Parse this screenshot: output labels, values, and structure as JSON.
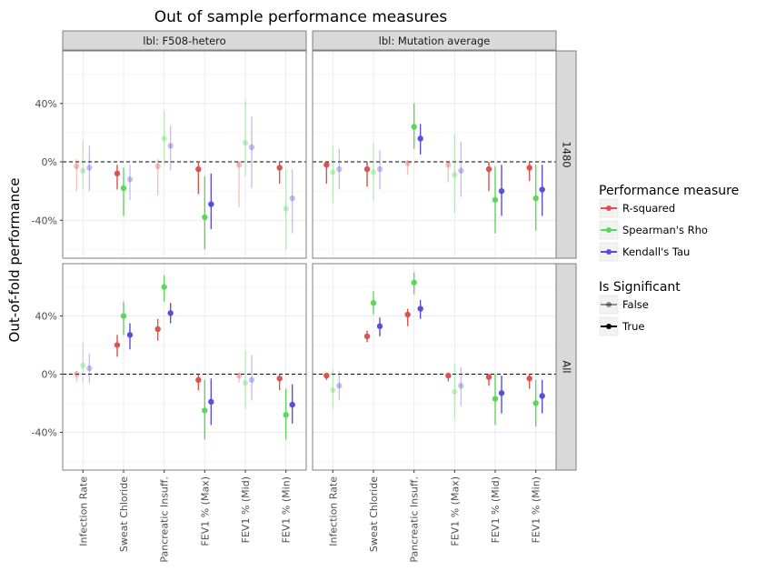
{
  "chart_data": {
    "type": "errorbar",
    "title": "Out of sample performance measures",
    "ylabel": "Out-of-fold performance",
    "xlabel": "",
    "categories": [
      "Infection Rate",
      "Sweat Chloride",
      "Pancreatic Insuff.",
      "FEV1 % (Max)",
      "FEV1 % (Mid)",
      "FEV1 % (Min)"
    ],
    "ylim": [
      -0.66,
      0.76
    ],
    "yticks": [
      {
        "value": -0.4,
        "label": "-40%"
      },
      {
        "value": 0,
        "label": "0%"
      },
      {
        "value": 0.4,
        "label": "40%"
      }
    ],
    "reference_line": 0,
    "col_facets": [
      "lbl: F508-hetero",
      "lbl: Mutation average"
    ],
    "row_facets": [
      "1480",
      "All"
    ],
    "series": [
      {
        "name": "R-squared",
        "color": "#d9534f"
      },
      {
        "name": "Spearman's Rho",
        "color": "#5cd65c"
      },
      {
        "name": "Kendall's Tau",
        "color": "#5a4fd9"
      }
    ],
    "significance_legend": {
      "title": "Is Significant",
      "levels": [
        "False",
        "True"
      ]
    },
    "legend_title": "Performance measure",
    "panels": [
      {
        "row": "1480",
        "col": "lbl: F508-hetero",
        "points": [
          [
            [
              -0.03,
              -0.2,
              0.02,
              false
            ],
            [
              -0.06,
              -0.18,
              0.15,
              false
            ],
            [
              -0.04,
              -0.2,
              0.11,
              false
            ]
          ],
          [
            [
              -0.08,
              -0.19,
              -0.02,
              true
            ],
            [
              -0.18,
              -0.37,
              -0.04,
              true
            ],
            [
              -0.12,
              -0.26,
              -0.02,
              false
            ]
          ],
          [
            [
              -0.03,
              -0.23,
              0.02,
              false
            ],
            [
              0.16,
              -0.02,
              0.35,
              false
            ],
            [
              0.11,
              -0.06,
              0.25,
              false
            ]
          ],
          [
            [
              -0.05,
              -0.22,
              0.0,
              true
            ],
            [
              -0.38,
              -0.6,
              -0.1,
              true
            ],
            [
              -0.29,
              -0.46,
              -0.08,
              true
            ]
          ],
          [
            [
              -0.02,
              -0.31,
              0.0,
              false
            ],
            [
              0.13,
              -0.1,
              0.42,
              false
            ],
            [
              0.1,
              -0.18,
              0.31,
              false
            ]
          ],
          [
            [
              -0.04,
              -0.15,
              0.0,
              true
            ],
            [
              -0.32,
              -0.6,
              -0.05,
              false
            ],
            [
              -0.25,
              -0.49,
              -0.05,
              false
            ]
          ]
        ]
      },
      {
        "row": "1480",
        "col": "lbl: Mutation average",
        "points": [
          [
            [
              -0.02,
              -0.15,
              0.0,
              true
            ],
            [
              -0.07,
              -0.28,
              0.11,
              false
            ],
            [
              -0.05,
              -0.19,
              0.09,
              false
            ]
          ],
          [
            [
              -0.05,
              -0.17,
              0.0,
              true
            ],
            [
              -0.07,
              -0.26,
              0.13,
              false
            ],
            [
              -0.05,
              -0.19,
              0.08,
              false
            ]
          ],
          [
            [
              -0.01,
              -0.09,
              0.01,
              false
            ],
            [
              0.24,
              0.09,
              0.4,
              true
            ],
            [
              0.16,
              0.05,
              0.26,
              true
            ]
          ],
          [
            [
              -0.02,
              -0.14,
              0.0,
              false
            ],
            [
              -0.09,
              -0.35,
              0.19,
              false
            ],
            [
              -0.06,
              -0.24,
              0.14,
              false
            ]
          ],
          [
            [
              -0.05,
              -0.2,
              0.0,
              true
            ],
            [
              -0.26,
              -0.49,
              -0.03,
              true
            ],
            [
              -0.2,
              -0.37,
              -0.02,
              true
            ]
          ],
          [
            [
              -0.04,
              -0.13,
              0.0,
              true
            ],
            [
              -0.25,
              -0.47,
              -0.02,
              true
            ],
            [
              -0.19,
              -0.37,
              -0.02,
              true
            ]
          ]
        ]
      },
      {
        "row": "All",
        "col": "lbl: F508-hetero",
        "points": [
          [
            [
              0.0,
              -0.05,
              0.02,
              false
            ],
            [
              0.06,
              -0.06,
              0.22,
              false
            ],
            [
              0.04,
              -0.06,
              0.14,
              false
            ]
          ],
          [
            [
              0.2,
              0.12,
              0.27,
              true
            ],
            [
              0.4,
              0.27,
              0.5,
              true
            ],
            [
              0.27,
              0.17,
              0.35,
              true
            ]
          ],
          [
            [
              0.31,
              0.23,
              0.38,
              true
            ],
            [
              0.6,
              0.5,
              0.68,
              true
            ],
            [
              0.42,
              0.35,
              0.49,
              true
            ]
          ],
          [
            [
              -0.04,
              -0.11,
              0.0,
              true
            ],
            [
              -0.25,
              -0.45,
              -0.04,
              true
            ],
            [
              -0.19,
              -0.35,
              -0.03,
              true
            ]
          ],
          [
            [
              -0.01,
              -0.06,
              0.01,
              false
            ],
            [
              -0.06,
              -0.24,
              0.16,
              false
            ],
            [
              -0.04,
              -0.18,
              0.13,
              false
            ]
          ],
          [
            [
              -0.03,
              -0.11,
              0.0,
              true
            ],
            [
              -0.28,
              -0.45,
              -0.1,
              true
            ],
            [
              -0.21,
              -0.34,
              -0.07,
              true
            ]
          ]
        ]
      },
      {
        "row": "All",
        "col": "lbl: Mutation average",
        "points": [
          [
            [
              -0.01,
              -0.04,
              0.01,
              true
            ],
            [
              -0.11,
              -0.24,
              0.03,
              false
            ],
            [
              -0.08,
              -0.18,
              0.02,
              false
            ]
          ],
          [
            [
              0.26,
              0.22,
              0.3,
              true
            ],
            [
              0.49,
              0.41,
              0.57,
              true
            ],
            [
              0.33,
              0.26,
              0.39,
              true
            ]
          ],
          [
            [
              0.41,
              0.33,
              0.45,
              true
            ],
            [
              0.63,
              0.55,
              0.7,
              true
            ],
            [
              0.45,
              0.38,
              0.51,
              true
            ]
          ],
          [
            [
              -0.01,
              -0.05,
              0.01,
              true
            ],
            [
              -0.12,
              -0.31,
              0.07,
              false
            ],
            [
              -0.08,
              -0.22,
              0.05,
              false
            ]
          ],
          [
            [
              -0.02,
              -0.08,
              0.0,
              true
            ],
            [
              -0.17,
              -0.35,
              0.0,
              true
            ],
            [
              -0.13,
              -0.27,
              -0.01,
              true
            ]
          ],
          [
            [
              -0.03,
              -0.1,
              0.0,
              true
            ],
            [
              -0.2,
              -0.36,
              -0.04,
              true
            ],
            [
              -0.15,
              -0.27,
              -0.04,
              true
            ]
          ]
        ]
      }
    ]
  }
}
